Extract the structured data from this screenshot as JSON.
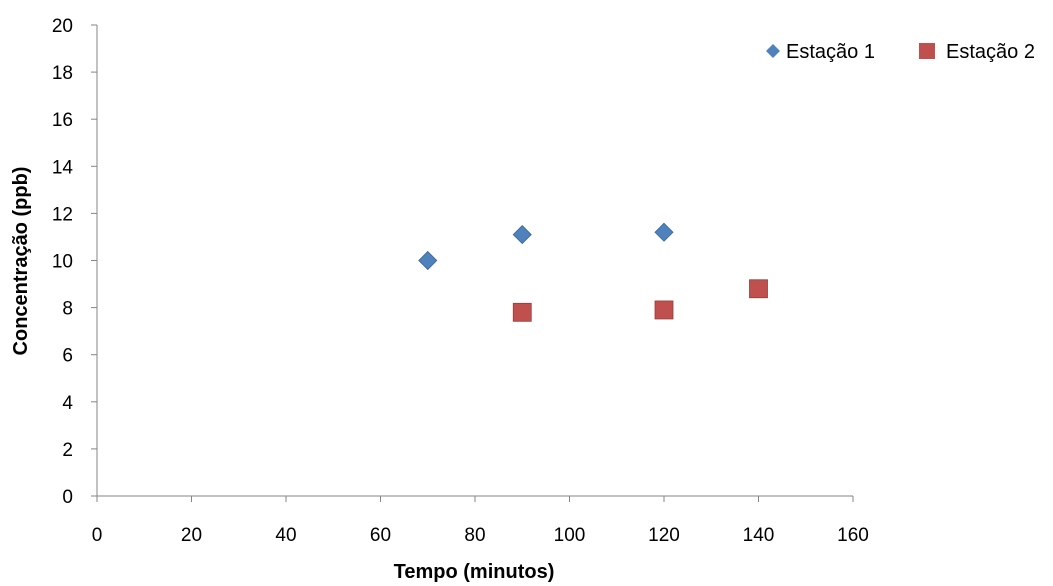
{
  "chart_data": {
    "type": "scatter",
    "title": "",
    "xlabel": "Tempo (minutos)",
    "ylabel": "Concentração (ppb)",
    "xlim": [
      0,
      160
    ],
    "ylim": [
      0,
      20
    ],
    "xticks": [
      0,
      20,
      40,
      60,
      80,
      100,
      120,
      140,
      160
    ],
    "yticks": [
      0,
      2,
      4,
      6,
      8,
      10,
      12,
      14,
      16,
      18,
      20
    ],
    "grid": false,
    "legend_position": "top-right",
    "series": [
      {
        "name": "Estação 1",
        "marker": "diamond",
        "color": "#4F81BD",
        "points": [
          [
            70,
            10.0
          ],
          [
            90,
            11.1
          ],
          [
            120,
            11.2
          ]
        ]
      },
      {
        "name": "Estação 2",
        "marker": "square",
        "color": "#C0504D",
        "points": [
          [
            90,
            7.8
          ],
          [
            120,
            7.9
          ],
          [
            140,
            8.8
          ]
        ]
      }
    ]
  }
}
